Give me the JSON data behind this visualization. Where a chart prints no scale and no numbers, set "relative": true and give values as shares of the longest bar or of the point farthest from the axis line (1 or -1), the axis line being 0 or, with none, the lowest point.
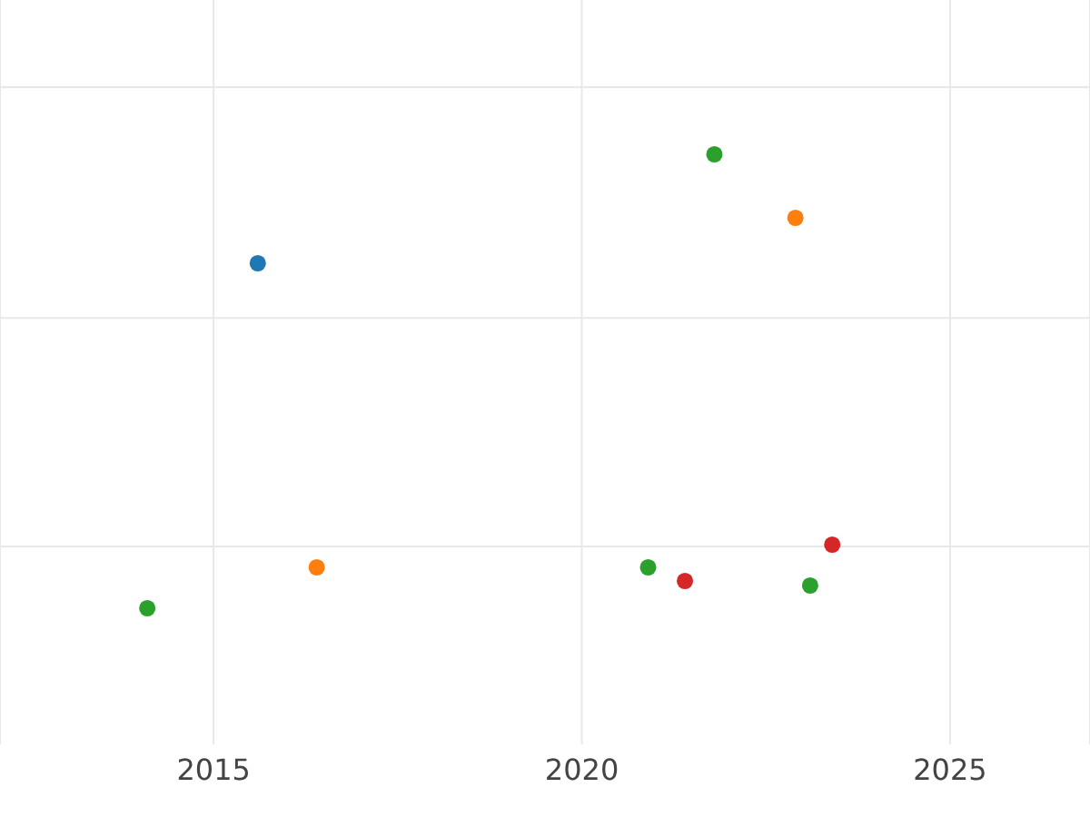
{
  "chart_data": {
    "type": "scatter",
    "relative": true,
    "xlim": [
      2012.1,
      2026.9
    ],
    "xticks": [
      2015,
      2020,
      2025
    ],
    "tick_labels": "x",
    "grid": true,
    "marker": "circle",
    "series": [
      {
        "color": "#1f77b4",
        "x": [
          2015.6
        ],
        "values": [
          0.76
        ]
      },
      {
        "color": "#ff7f0e",
        "x": [
          2016.4,
          2022.9
        ],
        "values": [
          0.09,
          0.86
        ]
      },
      {
        "color": "#2ca02c",
        "x": [
          2014.1,
          2021.8,
          2020.9,
          2023.1
        ],
        "values": [
          0,
          1,
          0.09,
          0.05
        ]
      },
      {
        "color": "#d62728",
        "x": [
          2021.4,
          2023.4
        ],
        "values": [
          0.06,
          0.14
        ]
      }
    ]
  }
}
